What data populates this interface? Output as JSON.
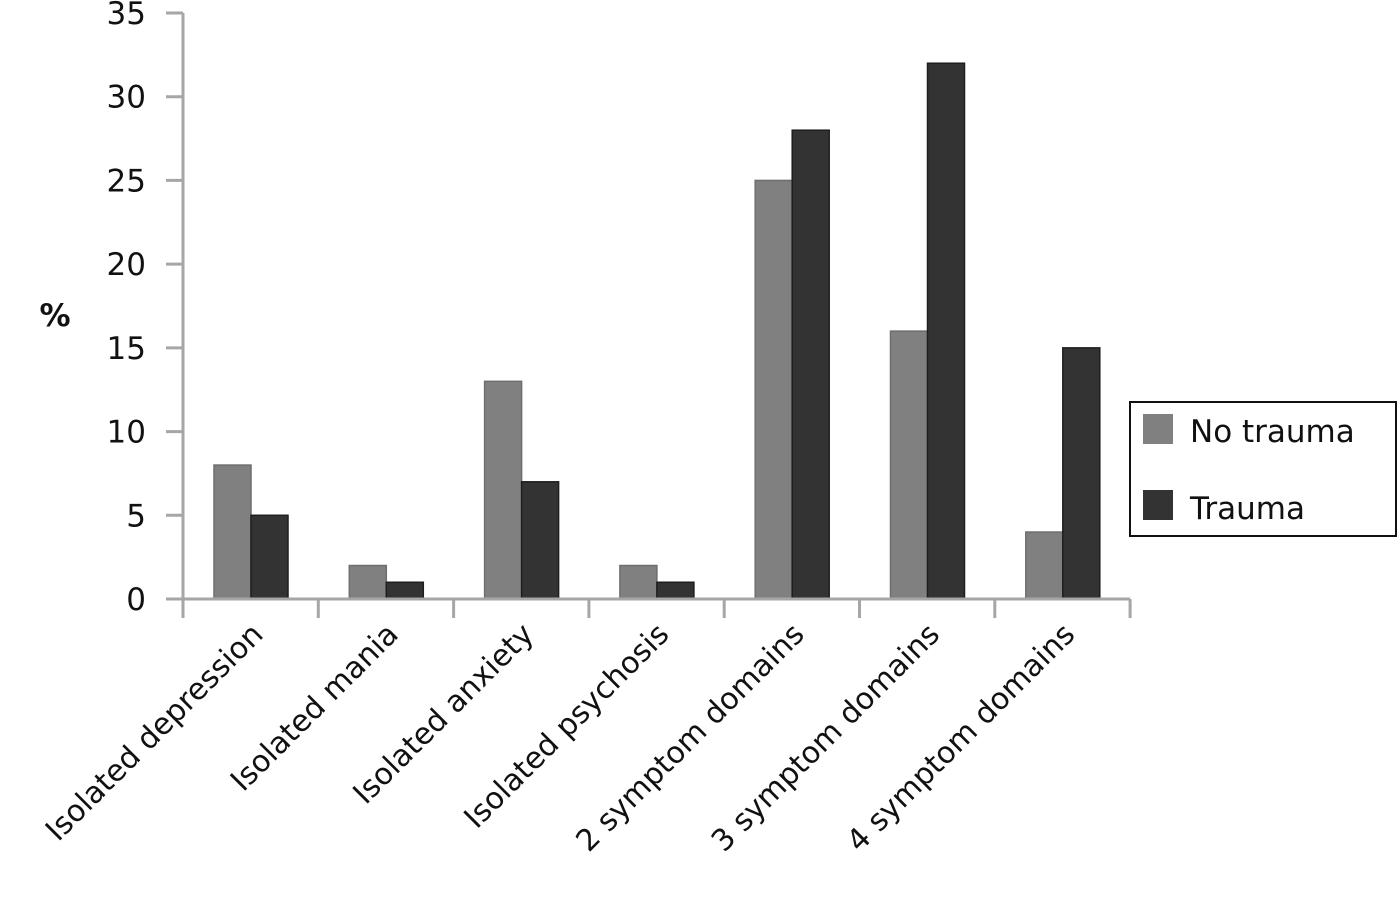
{
  "chart_data": {
    "type": "bar",
    "title": "",
    "xlabel": "",
    "ylabel": "%",
    "ylim": [
      0,
      35
    ],
    "yticks": [
      0,
      5,
      10,
      15,
      20,
      25,
      30,
      35
    ],
    "grid": false,
    "legend_position": "right",
    "categories": [
      "Isolated depression",
      "Isolated mania",
      "Isolated anxiety",
      "Isolated psychosis",
      "2 symptom domains",
      "3 symptom domains",
      "4 symptom domains"
    ],
    "series": [
      {
        "name": "No trauma",
        "color": "#808080",
        "values": [
          8,
          2,
          13,
          2,
          25,
          16,
          4
        ]
      },
      {
        "name": "Trauma",
        "color": "#333333",
        "values": [
          5,
          1,
          7,
          1,
          28,
          32,
          15
        ]
      }
    ]
  },
  "legend": {
    "items": [
      {
        "label": "No trauma",
        "color": "#808080"
      },
      {
        "label": "Trauma",
        "color": "#333333"
      }
    ]
  },
  "colors": {
    "axis": "#a6a6a6",
    "text": "#111111",
    "legend_border": "#111111"
  }
}
